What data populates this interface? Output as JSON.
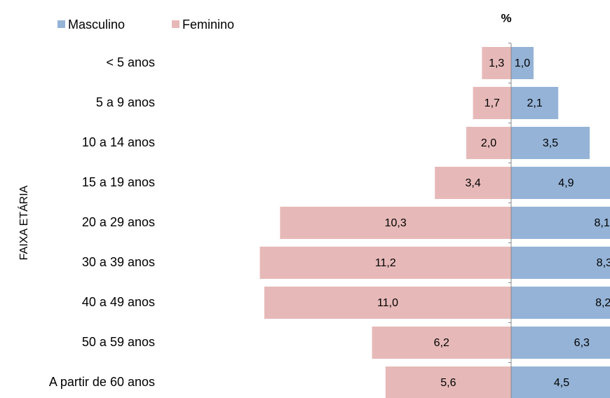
{
  "chart_data": {
    "type": "pyramid",
    "xlabel": "%",
    "ylabel": "FAIXA ETÁRIA",
    "categories": [
      "< 5 anos",
      "5 a 9 anos",
      "10 a 14 anos",
      "15 a 19 anos",
      "20 a 29 anos",
      "30 a 39 anos",
      "40 a 49 anos",
      "50 a 59 anos",
      "A partir de 60 anos"
    ],
    "series": [
      {
        "name": "Masculino",
        "color": "#95b3d7",
        "side": "right",
        "values": [
          1.0,
          2.1,
          3.5,
          4.9,
          8.1,
          8.3,
          8.2,
          6.3,
          4.5
        ],
        "value_labels": [
          "1,0",
          "2,1",
          "3,5",
          "4,9",
          "8,1",
          "8,3",
          "8,2",
          "6,3",
          "4,5"
        ]
      },
      {
        "name": "Feminino",
        "color": "#e6b9b8",
        "side": "left",
        "values": [
          1.3,
          1.7,
          2.0,
          3.4,
          10.3,
          11.2,
          11.0,
          6.2,
          5.6
        ],
        "value_labels": [
          "1,3",
          "1,7",
          "2,0",
          "3,4",
          "10,3",
          "11,2",
          "11,0",
          "6,2",
          "5,6"
        ]
      }
    ]
  }
}
